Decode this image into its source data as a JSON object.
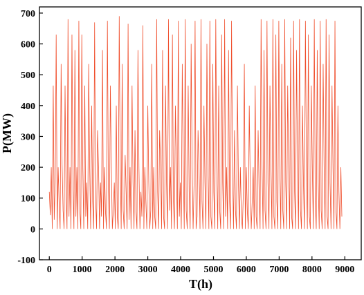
{
  "chart_data": {
    "type": "line",
    "title": "",
    "xlabel": "T(h)",
    "ylabel": "P(MW)",
    "xlim": [
      -300,
      9500
    ],
    "ylim": [
      -100,
      720
    ],
    "x_ticks": [
      0,
      1000,
      2000,
      3000,
      4000,
      5000,
      6000,
      7000,
      8000,
      9000
    ],
    "y_ticks": [
      -100,
      0,
      100,
      200,
      300,
      400,
      500,
      600,
      700
    ],
    "grid": false,
    "legend": "none",
    "series": [
      {
        "color": "#f04e2c",
        "x_start": 0,
        "x_step": 30,
        "values": [
          120,
          45,
          200,
          0,
          465,
          30,
          150,
          630,
          0,
          200,
          80,
          0,
          535,
          210,
          60,
          0,
          465,
          120,
          0,
          680,
          40,
          200,
          0,
          630,
          150,
          0,
          580,
          40,
          200,
          0,
          675,
          60,
          0,
          630,
          200,
          0,
          465,
          40,
          150,
          0,
          535,
          200,
          0,
          400,
          90,
          0,
          670,
          100,
          0,
          320,
          200,
          0,
          150,
          40,
          580,
          0,
          200,
          60,
          0,
          675,
          120,
          0,
          465,
          200,
          0,
          60,
          150,
          0,
          400,
          40,
          0,
          690,
          200,
          0,
          535,
          60,
          0,
          240,
          120,
          0,
          665,
          30,
          200,
          0,
          465,
          150,
          0,
          320,
          60,
          0,
          580,
          200,
          0,
          120,
          40,
          660,
          0,
          200,
          90,
          0,
          400,
          150,
          0,
          60,
          535,
          0,
          200,
          40,
          0,
          680,
          120,
          0,
          320,
          200,
          0,
          580,
          40,
          0,
          465,
          150,
          0,
          680,
          60,
          200,
          0,
          630,
          90,
          0,
          400,
          200,
          0,
          675,
          40,
          150,
          0,
          535,
          200,
          0,
          680,
          60,
          0,
          465,
          120,
          0,
          600,
          200,
          0,
          150,
          675,
          0,
          40,
          320,
          200,
          0,
          680,
          90,
          0,
          400,
          150,
          0,
          600,
          200,
          0,
          675,
          40,
          0,
          535,
          120,
          0,
          680,
          200,
          0,
          465,
          60,
          0,
          630,
          150,
          0,
          680,
          40,
          200,
          0,
          580,
          90,
          0,
          675,
          200,
          0,
          320,
          60,
          0,
          465,
          150,
          0,
          200,
          40,
          0,
          120,
          535,
          0,
          200,
          60,
          0,
          400,
          150,
          0,
          90,
          200,
          0,
          465,
          40,
          0,
          320,
          120,
          0,
          680,
          200,
          0,
          580,
          60,
          0,
          675,
          150,
          0,
          465,
          200,
          0,
          680,
          40,
          0,
          630,
          90,
          0,
          675,
          200,
          0,
          535,
          60,
          0,
          680,
          150,
          0,
          465,
          200,
          0,
          620,
          40,
          0,
          675,
          120,
          0,
          580,
          200,
          0,
          680,
          60,
          0,
          400,
          150,
          0,
          675,
          200,
          0,
          630,
          40,
          0,
          465,
          200,
          0,
          680,
          90,
          0,
          580,
          150,
          0,
          675,
          60,
          0,
          535,
          200,
          0,
          680,
          40,
          0,
          630,
          150,
          0,
          465,
          200,
          0,
          675,
          60,
          0,
          400,
          120,
          0,
          200,
          40
        ]
      }
    ]
  }
}
